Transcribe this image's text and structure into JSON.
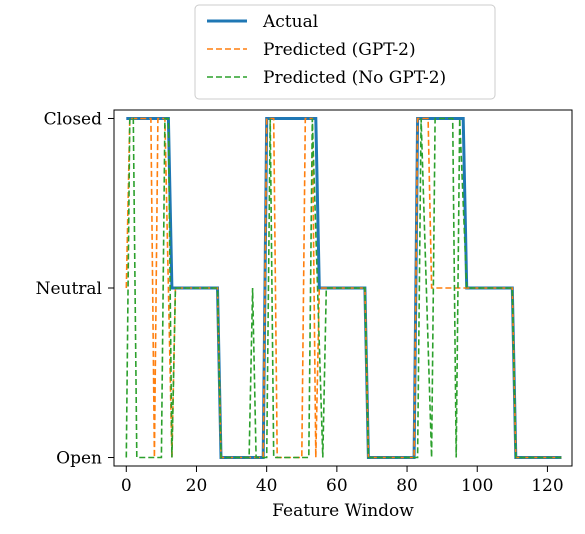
{
  "chart_data": {
    "type": "line",
    "title": "",
    "xlabel": "Feature Window",
    "ylabel": "",
    "xlim": [
      -3.5,
      127
    ],
    "ylim": [
      -0.05,
      2.05
    ],
    "xticks": [
      0,
      20,
      40,
      60,
      80,
      100,
      120
    ],
    "yticks": [
      0,
      1,
      2
    ],
    "ytick_labels": [
      "Open",
      "Neutral",
      "Closed"
    ],
    "grid": false,
    "legend_position": "top-center (above plot)",
    "series": [
      {
        "name": "Actual",
        "color": "#1f77b4",
        "style": "solid",
        "x": [
          0,
          12,
          13,
          26,
          27,
          39,
          40,
          54,
          55,
          68,
          69,
          82,
          83,
          96,
          97,
          110,
          111,
          124
        ],
        "y": [
          2,
          2,
          1,
          1,
          0,
          0,
          2,
          2,
          1,
          1,
          0,
          0,
          2,
          2,
          1,
          1,
          0,
          0
        ]
      },
      {
        "name": "Predicted (GPT-2)",
        "color": "#ff7f0e",
        "style": "dashed",
        "x": [
          0,
          1,
          7,
          8,
          9,
          11,
          13,
          14,
          26,
          27,
          39,
          40,
          42,
          43,
          50,
          51,
          53,
          54,
          55,
          56,
          68,
          69,
          82,
          83,
          86,
          87,
          96,
          97,
          110,
          111,
          124
        ],
        "y": [
          1,
          2,
          2,
          0,
          2,
          2,
          0,
          1,
          1,
          0,
          0,
          2,
          2,
          0,
          0,
          2,
          2,
          0,
          1,
          1,
          1,
          0,
          0,
          2,
          2,
          1,
          1,
          1,
          1,
          0,
          0
        ]
      },
      {
        "name": "Predicted (No GPT-2)",
        "color": "#2ca02c",
        "style": "dashed",
        "x": [
          0,
          1,
          2,
          3,
          10,
          11,
          12,
          13,
          14,
          26,
          27,
          35,
          36,
          37,
          40,
          41,
          42,
          52,
          53,
          56,
          57,
          67,
          68,
          69,
          82,
          83,
          84,
          87,
          88,
          89,
          93,
          94,
          95,
          97,
          110,
          111,
          124
        ],
        "y": [
          0,
          2,
          2,
          0,
          0,
          2,
          2,
          0,
          1,
          1,
          0,
          0,
          1,
          0,
          0,
          2,
          0,
          0,
          2,
          0,
          1,
          1,
          1,
          0,
          0,
          0,
          2,
          0,
          2,
          2,
          2,
          0,
          2,
          1,
          1,
          0,
          0
        ]
      }
    ]
  }
}
